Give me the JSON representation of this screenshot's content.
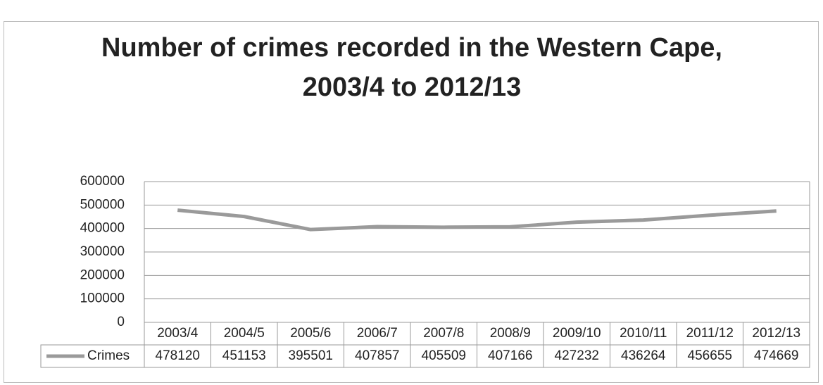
{
  "chart_data": {
    "type": "line",
    "title": "Number of crimes recorded in the Western Cape,\n2003/4 to 2012/13",
    "categories": [
      "2003/4",
      "2004/5",
      "2005/6",
      "2006/7",
      "2007/8",
      "2008/9",
      "2009/10",
      "2010/11",
      "2011/12",
      "2012/13"
    ],
    "series": [
      {
        "name": "Crimes",
        "color": "#9a9a9a",
        "values": [
          478120,
          451153,
          395501,
          407857,
          405509,
          407166,
          427232,
          436264,
          456655,
          474669
        ]
      }
    ],
    "ylim": [
      0,
      600000
    ],
    "yticks": [
      0,
      100000,
      200000,
      300000,
      400000,
      500000,
      600000
    ],
    "grid": true
  }
}
